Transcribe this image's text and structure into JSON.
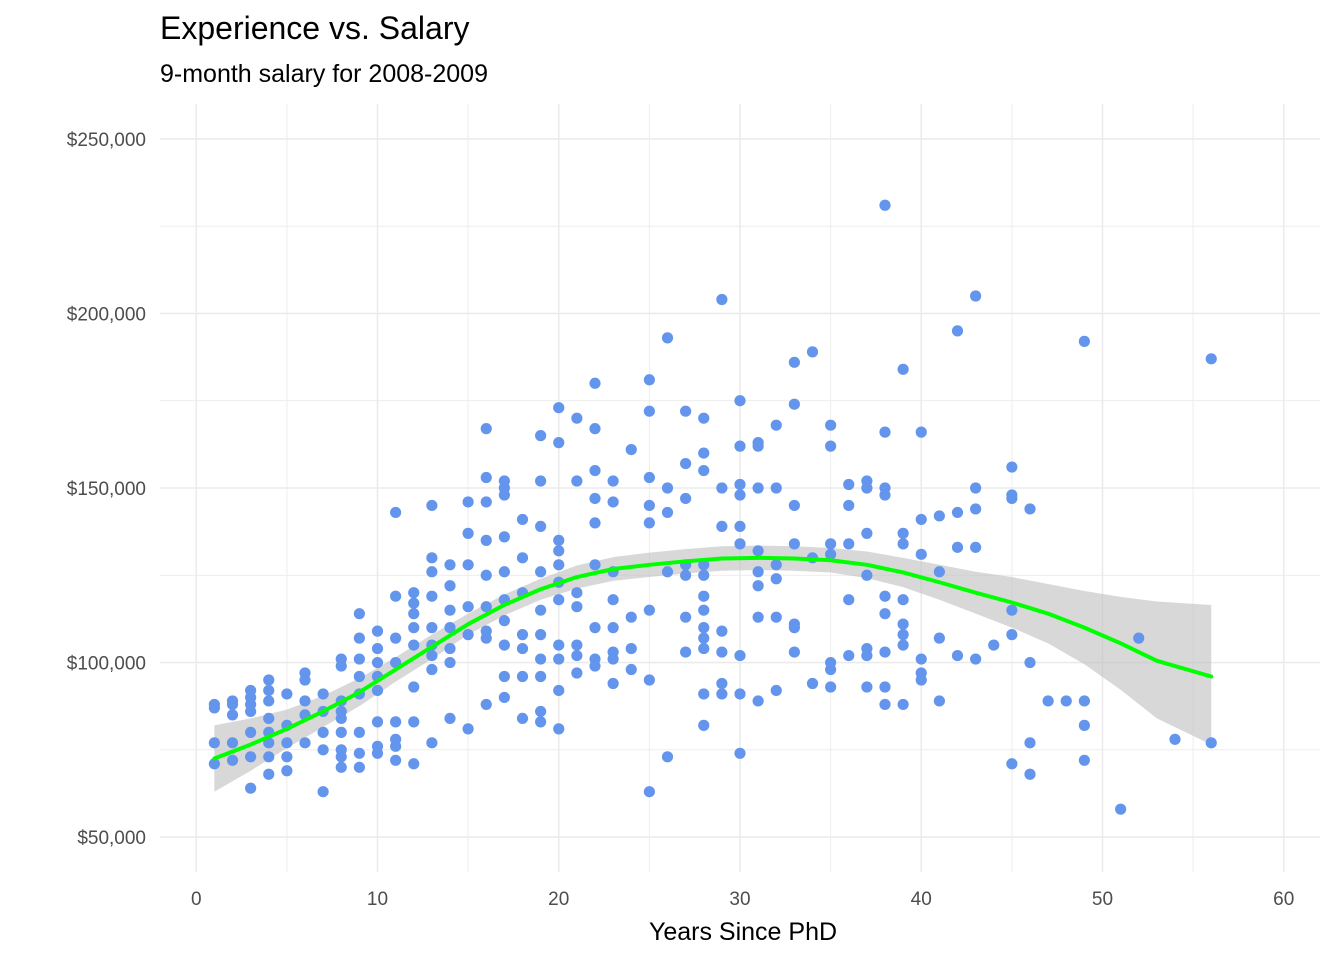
{
  "chart_data": {
    "type": "scatter",
    "title": "Experience vs. Salary",
    "subtitle": "9-month salary for 2008-2009",
    "xlabel": "Years Since PhD",
    "ylabel": "",
    "xlim": [
      -2,
      62
    ],
    "ylim": [
      40000,
      260000
    ],
    "x_ticks": [
      0,
      10,
      20,
      30,
      40,
      50,
      60
    ],
    "x_tick_labels": [
      "0",
      "10",
      "20",
      "30",
      "40",
      "50",
      "60"
    ],
    "y_ticks": [
      50000,
      100000,
      150000,
      200000,
      250000
    ],
    "y_tick_labels": [
      "$50,000",
      "$100,000",
      "$150,000",
      "$200,000",
      "$250,000"
    ],
    "grid": true,
    "point_color": "#6495ED",
    "smooth_color": "#00FF00",
    "band_color": "#BEBEBE",
    "points": [
      [
        1,
        88000
      ],
      [
        1,
        87000
      ],
      [
        1,
        77000
      ],
      [
        1,
        71000
      ],
      [
        2,
        89000
      ],
      [
        2,
        88000
      ],
      [
        2,
        85000
      ],
      [
        2,
        77000
      ],
      [
        2,
        72000
      ],
      [
        3,
        92000
      ],
      [
        3,
        90000
      ],
      [
        3,
        88000
      ],
      [
        3,
        86000
      ],
      [
        3,
        80000
      ],
      [
        3,
        73000
      ],
      [
        3,
        64000
      ],
      [
        4,
        95000
      ],
      [
        4,
        92000
      ],
      [
        4,
        89000
      ],
      [
        4,
        84000
      ],
      [
        4,
        80000
      ],
      [
        4,
        77000
      ],
      [
        4,
        73000
      ],
      [
        4,
        68000
      ],
      [
        5,
        91000
      ],
      [
        5,
        82000
      ],
      [
        5,
        77000
      ],
      [
        5,
        73000
      ],
      [
        5,
        69000
      ],
      [
        6,
        97000
      ],
      [
        6,
        95000
      ],
      [
        6,
        89000
      ],
      [
        6,
        85000
      ],
      [
        6,
        77000
      ],
      [
        7,
        91000
      ],
      [
        7,
        86000
      ],
      [
        7,
        80000
      ],
      [
        7,
        75000
      ],
      [
        7,
        63000
      ],
      [
        8,
        101000
      ],
      [
        8,
        99000
      ],
      [
        8,
        89000
      ],
      [
        8,
        86000
      ],
      [
        8,
        84000
      ],
      [
        8,
        80000
      ],
      [
        8,
        75000
      ],
      [
        8,
        73000
      ],
      [
        8,
        70000
      ],
      [
        9,
        114000
      ],
      [
        9,
        107000
      ],
      [
        9,
        101000
      ],
      [
        9,
        96000
      ],
      [
        9,
        91000
      ],
      [
        9,
        80000
      ],
      [
        9,
        74000
      ],
      [
        9,
        70000
      ],
      [
        10,
        109000
      ],
      [
        10,
        104000
      ],
      [
        10,
        100000
      ],
      [
        10,
        96000
      ],
      [
        10,
        92000
      ],
      [
        10,
        83000
      ],
      [
        10,
        76000
      ],
      [
        10,
        74000
      ],
      [
        11,
        143000
      ],
      [
        11,
        119000
      ],
      [
        11,
        107000
      ],
      [
        11,
        100000
      ],
      [
        11,
        83000
      ],
      [
        11,
        78000
      ],
      [
        11,
        76000
      ],
      [
        11,
        72000
      ],
      [
        12,
        120000
      ],
      [
        12,
        117000
      ],
      [
        12,
        114000
      ],
      [
        12,
        110000
      ],
      [
        12,
        105000
      ],
      [
        12,
        93000
      ],
      [
        12,
        83000
      ],
      [
        12,
        71000
      ],
      [
        13,
        145000
      ],
      [
        13,
        130000
      ],
      [
        13,
        126000
      ],
      [
        13,
        119000
      ],
      [
        13,
        110000
      ],
      [
        13,
        105000
      ],
      [
        13,
        102000
      ],
      [
        13,
        98000
      ],
      [
        13,
        77000
      ],
      [
        14,
        128000
      ],
      [
        14,
        122000
      ],
      [
        14,
        115000
      ],
      [
        14,
        110000
      ],
      [
        14,
        104000
      ],
      [
        14,
        100000
      ],
      [
        14,
        84000
      ],
      [
        15,
        146000
      ],
      [
        15,
        137000
      ],
      [
        15,
        128000
      ],
      [
        15,
        116000
      ],
      [
        15,
        108000
      ],
      [
        15,
        81000
      ],
      [
        16,
        167000
      ],
      [
        16,
        153000
      ],
      [
        16,
        146000
      ],
      [
        16,
        135000
      ],
      [
        16,
        125000
      ],
      [
        16,
        116000
      ],
      [
        16,
        109000
      ],
      [
        16,
        107000
      ],
      [
        16,
        88000
      ],
      [
        17,
        152000
      ],
      [
        17,
        150000
      ],
      [
        17,
        148000
      ],
      [
        17,
        136000
      ],
      [
        17,
        126000
      ],
      [
        17,
        118000
      ],
      [
        17,
        112000
      ],
      [
        17,
        105000
      ],
      [
        17,
        96000
      ],
      [
        17,
        90000
      ],
      [
        18,
        141000
      ],
      [
        18,
        130000
      ],
      [
        18,
        120000
      ],
      [
        18,
        108000
      ],
      [
        18,
        104000
      ],
      [
        18,
        96000
      ],
      [
        18,
        84000
      ],
      [
        19,
        165000
      ],
      [
        19,
        152000
      ],
      [
        19,
        139000
      ],
      [
        19,
        126000
      ],
      [
        19,
        115000
      ],
      [
        19,
        108000
      ],
      [
        19,
        101000
      ],
      [
        19,
        96000
      ],
      [
        19,
        86000
      ],
      [
        19,
        83000
      ],
      [
        20,
        173000
      ],
      [
        20,
        163000
      ],
      [
        20,
        135000
      ],
      [
        20,
        132000
      ],
      [
        20,
        128000
      ],
      [
        20,
        123000
      ],
      [
        20,
        118000
      ],
      [
        20,
        105000
      ],
      [
        20,
        101000
      ],
      [
        20,
        92000
      ],
      [
        20,
        81000
      ],
      [
        21,
        170000
      ],
      [
        21,
        152000
      ],
      [
        21,
        120000
      ],
      [
        21,
        116000
      ],
      [
        21,
        105000
      ],
      [
        21,
        102000
      ],
      [
        21,
        97000
      ],
      [
        22,
        180000
      ],
      [
        22,
        167000
      ],
      [
        22,
        155000
      ],
      [
        22,
        147000
      ],
      [
        22,
        140000
      ],
      [
        22,
        128000
      ],
      [
        22,
        110000
      ],
      [
        22,
        101000
      ],
      [
        22,
        99000
      ],
      [
        23,
        152000
      ],
      [
        23,
        146000
      ],
      [
        23,
        126000
      ],
      [
        23,
        118000
      ],
      [
        23,
        110000
      ],
      [
        23,
        103000
      ],
      [
        23,
        101000
      ],
      [
        23,
        94000
      ],
      [
        24,
        161000
      ],
      [
        24,
        113000
      ],
      [
        24,
        104000
      ],
      [
        24,
        98000
      ],
      [
        25,
        181000
      ],
      [
        25,
        172000
      ],
      [
        25,
        153000
      ],
      [
        25,
        145000
      ],
      [
        25,
        140000
      ],
      [
        25,
        115000
      ],
      [
        25,
        95000
      ],
      [
        25,
        63000
      ],
      [
        26,
        193000
      ],
      [
        26,
        150000
      ],
      [
        26,
        143000
      ],
      [
        26,
        126000
      ],
      [
        26,
        73000
      ],
      [
        27,
        172000
      ],
      [
        27,
        157000
      ],
      [
        27,
        147000
      ],
      [
        27,
        128000
      ],
      [
        27,
        125000
      ],
      [
        27,
        113000
      ],
      [
        27,
        103000
      ],
      [
        28,
        170000
      ],
      [
        28,
        160000
      ],
      [
        28,
        155000
      ],
      [
        28,
        128000
      ],
      [
        28,
        125000
      ],
      [
        28,
        119000
      ],
      [
        28,
        115000
      ],
      [
        28,
        110000
      ],
      [
        28,
        107000
      ],
      [
        28,
        104000
      ],
      [
        28,
        91000
      ],
      [
        28,
        82000
      ],
      [
        29,
        204000
      ],
      [
        29,
        150000
      ],
      [
        29,
        139000
      ],
      [
        29,
        109000
      ],
      [
        29,
        103000
      ],
      [
        29,
        94000
      ],
      [
        29,
        91000
      ],
      [
        30,
        175000
      ],
      [
        30,
        162000
      ],
      [
        30,
        151000
      ],
      [
        30,
        148000
      ],
      [
        30,
        139000
      ],
      [
        30,
        134000
      ],
      [
        30,
        102000
      ],
      [
        30,
        91000
      ],
      [
        30,
        74000
      ],
      [
        31,
        163000
      ],
      [
        31,
        162000
      ],
      [
        31,
        150000
      ],
      [
        31,
        132000
      ],
      [
        31,
        126000
      ],
      [
        31,
        122000
      ],
      [
        31,
        113000
      ],
      [
        31,
        89000
      ],
      [
        32,
        168000
      ],
      [
        32,
        150000
      ],
      [
        32,
        128000
      ],
      [
        32,
        124000
      ],
      [
        32,
        113000
      ],
      [
        32,
        92000
      ],
      [
        33,
        186000
      ],
      [
        33,
        174000
      ],
      [
        33,
        145000
      ],
      [
        33,
        134000
      ],
      [
        33,
        111000
      ],
      [
        33,
        110000
      ],
      [
        33,
        103000
      ],
      [
        34,
        189000
      ],
      [
        34,
        130000
      ],
      [
        34,
        94000
      ],
      [
        35,
        168000
      ],
      [
        35,
        162000
      ],
      [
        35,
        134000
      ],
      [
        35,
        131000
      ],
      [
        35,
        100000
      ],
      [
        35,
        98000
      ],
      [
        35,
        93000
      ],
      [
        36,
        151000
      ],
      [
        36,
        145000
      ],
      [
        36,
        134000
      ],
      [
        36,
        118000
      ],
      [
        36,
        102000
      ],
      [
        37,
        152000
      ],
      [
        37,
        150000
      ],
      [
        37,
        137000
      ],
      [
        37,
        125000
      ],
      [
        37,
        104000
      ],
      [
        37,
        102000
      ],
      [
        37,
        93000
      ],
      [
        38,
        231000
      ],
      [
        38,
        166000
      ],
      [
        38,
        150000
      ],
      [
        38,
        148000
      ],
      [
        38,
        119000
      ],
      [
        38,
        114000
      ],
      [
        38,
        103000
      ],
      [
        38,
        93000
      ],
      [
        38,
        88000
      ],
      [
        39,
        184000
      ],
      [
        39,
        137000
      ],
      [
        39,
        134000
      ],
      [
        39,
        118000
      ],
      [
        39,
        111000
      ],
      [
        39,
        108000
      ],
      [
        39,
        105000
      ],
      [
        39,
        88000
      ],
      [
        40,
        166000
      ],
      [
        40,
        141000
      ],
      [
        40,
        131000
      ],
      [
        40,
        101000
      ],
      [
        40,
        97000
      ],
      [
        40,
        95000
      ],
      [
        41,
        142000
      ],
      [
        41,
        126000
      ],
      [
        41,
        107000
      ],
      [
        41,
        89000
      ],
      [
        42,
        195000
      ],
      [
        42,
        143000
      ],
      [
        42,
        133000
      ],
      [
        42,
        102000
      ],
      [
        43,
        205000
      ],
      [
        43,
        150000
      ],
      [
        43,
        144000
      ],
      [
        43,
        133000
      ],
      [
        43,
        101000
      ],
      [
        44,
        105000
      ],
      [
        45,
        156000
      ],
      [
        45,
        148000
      ],
      [
        45,
        147000
      ],
      [
        45,
        115000
      ],
      [
        45,
        108000
      ],
      [
        45,
        71000
      ],
      [
        46,
        144000
      ],
      [
        46,
        100000
      ],
      [
        46,
        77000
      ],
      [
        46,
        68000
      ],
      [
        47,
        89000
      ],
      [
        48,
        89000
      ],
      [
        49,
        192000
      ],
      [
        49,
        89000
      ],
      [
        49,
        82000
      ],
      [
        49,
        72000
      ],
      [
        51,
        58000
      ],
      [
        52,
        107000
      ],
      [
        54,
        78000
      ],
      [
        56,
        187000
      ],
      [
        56,
        77000
      ]
    ],
    "smooth_line": [
      [
        1,
        72500
      ],
      [
        3,
        76500
      ],
      [
        5,
        81000
      ],
      [
        7,
        86000
      ],
      [
        9,
        91500
      ],
      [
        11,
        98000
      ],
      [
        13,
        104500
      ],
      [
        15,
        111000
      ],
      [
        17,
        116500
      ],
      [
        19,
        121000
      ],
      [
        21,
        124500
      ],
      [
        23,
        126800
      ],
      [
        25,
        128000
      ],
      [
        27,
        129000
      ],
      [
        29,
        129800
      ],
      [
        31,
        130000
      ],
      [
        33,
        129800
      ],
      [
        35,
        129300
      ],
      [
        37,
        128000
      ],
      [
        39,
        125800
      ],
      [
        41,
        123000
      ],
      [
        43,
        120000
      ],
      [
        45,
        117200
      ],
      [
        47,
        114000
      ],
      [
        49,
        110000
      ],
      [
        51,
        105500
      ],
      [
        53,
        100500
      ],
      [
        56,
        96000
      ]
    ],
    "band_upper": [
      [
        1,
        82000
      ],
      [
        3,
        84000
      ],
      [
        5,
        86500
      ],
      [
        7,
        90500
      ],
      [
        9,
        95500
      ],
      [
        11,
        101500
      ],
      [
        13,
        108000
      ],
      [
        15,
        114000
      ],
      [
        17,
        119500
      ],
      [
        19,
        124000
      ],
      [
        21,
        127800
      ],
      [
        23,
        130200
      ],
      [
        25,
        131500
      ],
      [
        27,
        132500
      ],
      [
        29,
        133300
      ],
      [
        31,
        133500
      ],
      [
        33,
        133300
      ],
      [
        35,
        132800
      ],
      [
        37,
        131800
      ],
      [
        39,
        130000
      ],
      [
        41,
        128000
      ],
      [
        43,
        126000
      ],
      [
        45,
        124500
      ],
      [
        47,
        122500
      ],
      [
        49,
        120500
      ],
      [
        51,
        118800
      ],
      [
        53,
        117500
      ],
      [
        56,
        116500
      ]
    ],
    "band_lower": [
      [
        1,
        63000
      ],
      [
        3,
        69000
      ],
      [
        5,
        75500
      ],
      [
        7,
        81500
      ],
      [
        9,
        87500
      ],
      [
        11,
        94500
      ],
      [
        13,
        101000
      ],
      [
        15,
        108000
      ],
      [
        17,
        113500
      ],
      [
        19,
        118000
      ],
      [
        21,
        121200
      ],
      [
        23,
        123400
      ],
      [
        25,
        124500
      ],
      [
        27,
        125500
      ],
      [
        29,
        126300
      ],
      [
        31,
        126500
      ],
      [
        33,
        126300
      ],
      [
        35,
        125800
      ],
      [
        37,
        124200
      ],
      [
        39,
        121600
      ],
      [
        41,
        118000
      ],
      [
        43,
        114000
      ],
      [
        45,
        110000
      ],
      [
        47,
        105500
      ],
      [
        49,
        99500
      ],
      [
        51,
        92200
      ],
      [
        53,
        84000
      ],
      [
        56,
        76500
      ]
    ]
  }
}
